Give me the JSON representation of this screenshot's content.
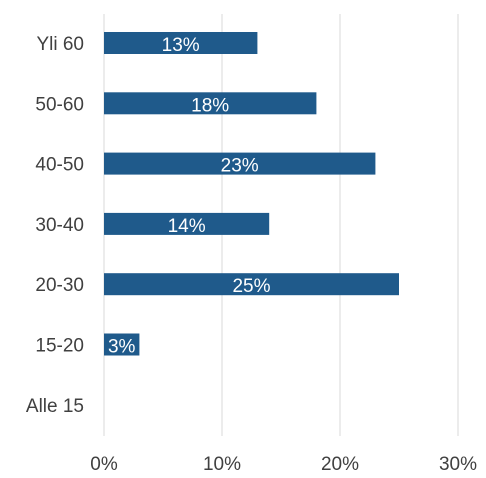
{
  "chart_data": {
    "type": "bar",
    "orientation": "horizontal",
    "categories": [
      "Yli 60",
      "50-60",
      "40-50",
      "30-40",
      "20-30",
      "15-20",
      "Alle 15"
    ],
    "values": [
      13,
      18,
      23,
      14,
      25,
      3,
      0
    ],
    "data_labels": [
      "13%",
      "18%",
      "23%",
      "14%",
      "25%",
      "3%",
      ""
    ],
    "x_ticks": [
      "0%",
      "10%",
      "20%",
      "30%"
    ],
    "x_tick_values": [
      0,
      10,
      20,
      30
    ],
    "xlim": [
      0,
      30
    ],
    "grid": true,
    "legend": "none",
    "bar_color": "#1f5a8b",
    "grid_color": "#d9d9d9",
    "label_color": "#404040"
  }
}
